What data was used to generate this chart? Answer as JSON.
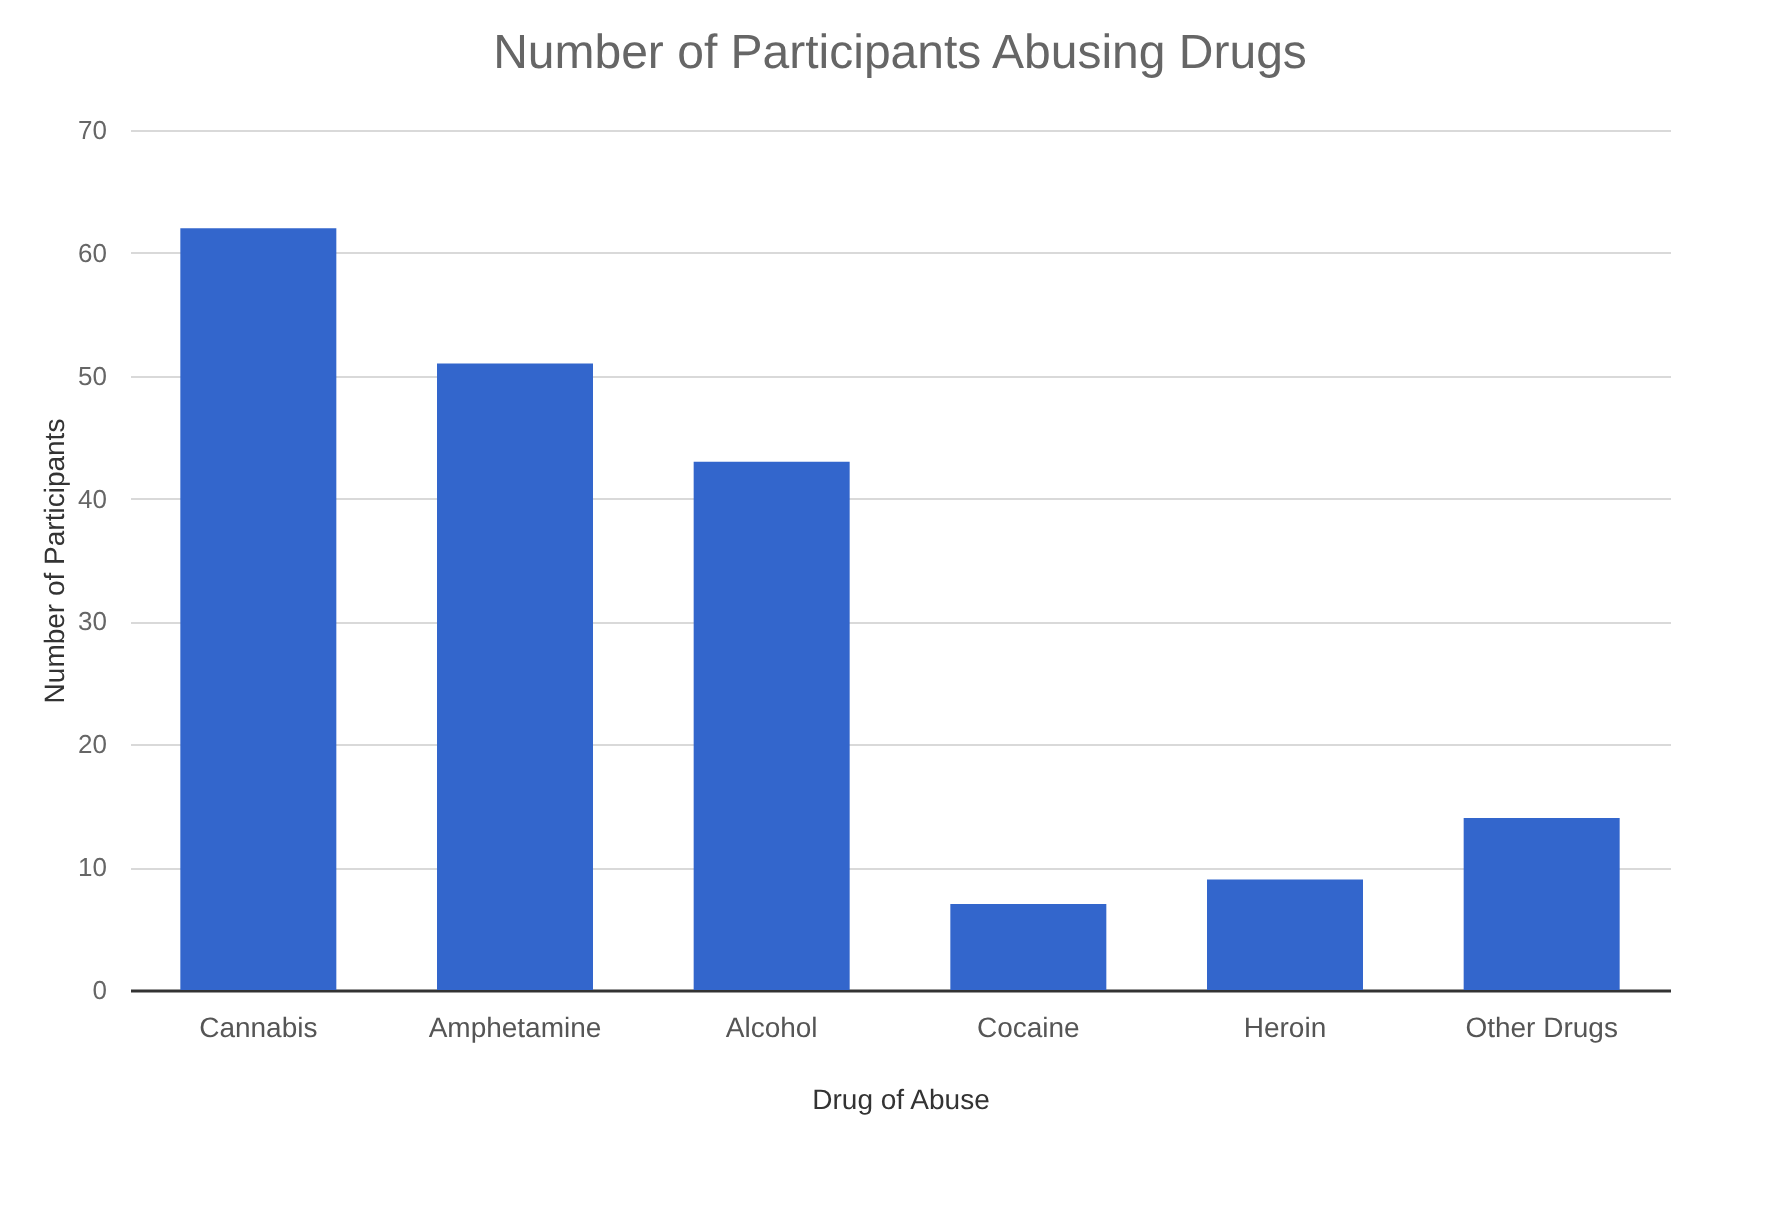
{
  "chart_data": {
    "type": "bar",
    "title": "Number of Participants Abusing Drugs",
    "xlabel": "Drug of Abuse",
    "ylabel": "Number of Participants",
    "categories": [
      "Cannabis",
      "Amphetamine",
      "Alcohol",
      "Cocaine",
      "Heroin",
      "Other Drugs"
    ],
    "values": [
      62,
      51,
      43,
      7,
      9,
      14
    ],
    "color": "#3366cc",
    "ylim": [
      0,
      70
    ],
    "yticks": [
      0,
      10,
      20,
      30,
      40,
      50,
      60,
      70
    ],
    "grid": "y"
  }
}
